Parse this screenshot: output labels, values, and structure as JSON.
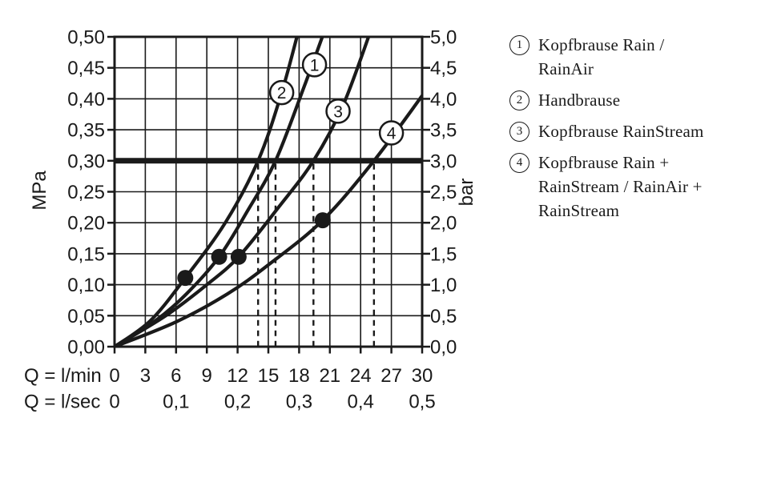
{
  "page": {
    "background": "#ffffff",
    "ink": "#1a1a1a"
  },
  "chart_data": {
    "type": "line",
    "grid": true,
    "x_axis": {
      "label_lmin": "Q = l/min",
      "label_lsec": "Q = l/sec",
      "ticks_lmin": [
        "0",
        "3",
        "6",
        "9",
        "12",
        "15",
        "18",
        "21",
        "24",
        "27",
        "30"
      ],
      "ticks_lsec": [
        "0",
        "0,1",
        "0,2",
        "0,3",
        "0,4",
        "0,5"
      ],
      "range_lmin": [
        0,
        30
      ]
    },
    "y_axis_left": {
      "label": "MPa",
      "ticks_bottom_to_top": [
        "0,00",
        "0,05",
        "0,10",
        "0,15",
        "0,20",
        "0,25",
        "0,30",
        "0,35",
        "0,40",
        "0,45",
        "0,50"
      ],
      "range_mpa": [
        0,
        0.5
      ]
    },
    "y_axis_right": {
      "label": "bar",
      "ticks_bottom_to_top": [
        "0,0",
        "0,5",
        "1,0",
        "1,5",
        "2,0",
        "2,5",
        "3,0",
        "3,5",
        "4,0",
        "4,5",
        "5,0"
      ],
      "range_bar": [
        0,
        5
      ]
    },
    "reference_line": {
      "value_bar": 3.0,
      "value_mpa": 0.3
    },
    "series": [
      {
        "id": "1",
        "name": "Kopfbrause Rain / RainAir",
        "points_lmin_bar": [
          [
            0,
            0
          ],
          [
            4,
            0.42
          ],
          [
            7,
            0.85
          ],
          [
            10.2,
            1.45
          ],
          [
            13,
            2.2
          ],
          [
            15.7,
            3.0
          ],
          [
            18.5,
            4.2
          ],
          [
            20.7,
            5.2
          ]
        ],
        "dot_lmin_bar": [
          10.2,
          1.45
        ],
        "flow_at_3bar_lmin": 15.7,
        "label_circle_lmin_bar": [
          19.5,
          4.55
        ]
      },
      {
        "id": "2",
        "name": "Handbrause",
        "points_lmin_bar": [
          [
            0,
            0
          ],
          [
            3.5,
            0.42
          ],
          [
            6.9,
            1.11
          ],
          [
            10.8,
            2.0
          ],
          [
            14,
            3.0
          ],
          [
            16.3,
            4.1
          ],
          [
            18.1,
            5.2
          ]
        ],
        "dot_lmin_bar": [
          6.9,
          1.11
        ],
        "flow_at_3bar_lmin": 14.0,
        "label_circle_lmin_bar": [
          16.3,
          4.1
        ]
      },
      {
        "id": "3",
        "name": "Kopfbrause RainStream",
        "points_lmin_bar": [
          [
            0,
            0
          ],
          [
            5,
            0.5
          ],
          [
            9,
            1.0
          ],
          [
            12.1,
            1.45
          ],
          [
            16,
            2.25
          ],
          [
            19.4,
            3.0
          ],
          [
            22.3,
            3.9
          ],
          [
            25.2,
            5.2
          ]
        ],
        "dot_lmin_bar": [
          12.1,
          1.45
        ],
        "flow_at_3bar_lmin": 19.4,
        "label_circle_lmin_bar": [
          21.8,
          3.8
        ]
      },
      {
        "id": "4",
        "name": "Kopfbrause Rain + RainStream / RainAir + RainStream",
        "points_lmin_bar": [
          [
            0,
            0
          ],
          [
            6,
            0.4
          ],
          [
            11,
            0.85
          ],
          [
            15,
            1.32
          ],
          [
            20.3,
            2.04
          ],
          [
            25.3,
            3.0
          ],
          [
            30,
            4.05
          ]
        ],
        "dot_lmin_bar": [
          20.3,
          2.04
        ],
        "flow_at_3bar_lmin": 25.3,
        "label_circle_lmin_bar": [
          27.0,
          3.45
        ]
      }
    ]
  },
  "legend": {
    "items": [
      {
        "number": "1",
        "label": "Kopfbrause Rain /\nRainAir"
      },
      {
        "number": "2",
        "label": "Handbrause"
      },
      {
        "number": "3",
        "label": "Kopfbrause RainStream"
      },
      {
        "number": "4",
        "label": "Kopfbrause Rain +\nRainStream / RainAir +\nRainStream"
      }
    ]
  }
}
